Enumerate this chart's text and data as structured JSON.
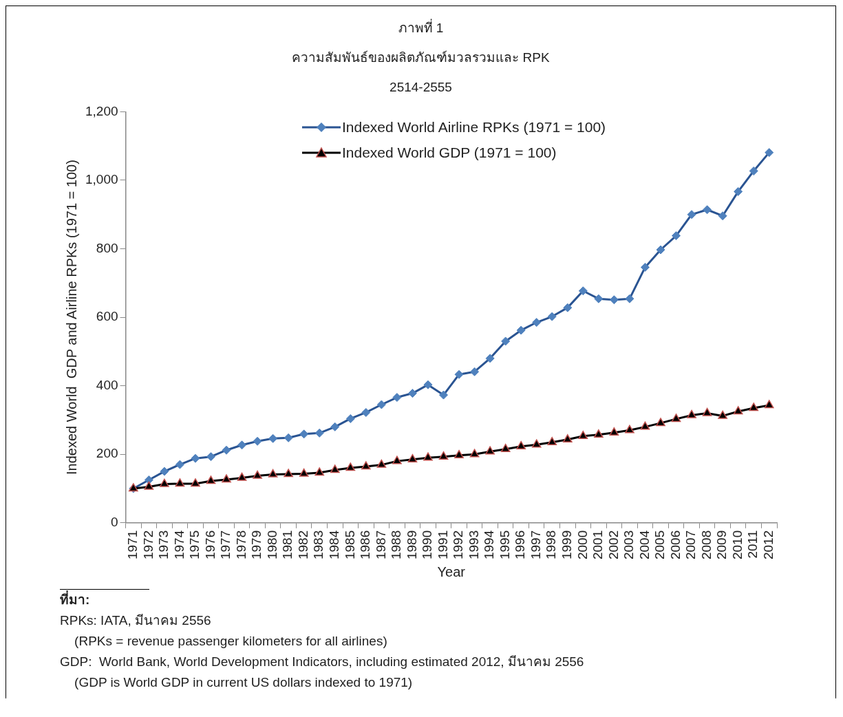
{
  "chart_data": {
    "type": "line",
    "title": "ภาพที่ 1",
    "subtitle": "ความสัมพันธ์ของผลิตภัณฑ์มวลรวมและ RPK\n2514-2555",
    "xlabel": "Year",
    "ylabel": "Indexed World  GDP and Airline RPKs (1971 = 100)",
    "categories": [
      "1971",
      "1972",
      "1973",
      "1974",
      "1975",
      "1976",
      "1977",
      "1978",
      "1979",
      "1980",
      "1981",
      "1982",
      "1983",
      "1984",
      "1985",
      "1986",
      "1987",
      "1988",
      "1989",
      "1990",
      "1991",
      "1992",
      "1993",
      "1994",
      "1995",
      "1996",
      "1997",
      "1998",
      "1999",
      "2000",
      "2001",
      "2002",
      "2003",
      "2004",
      "2005",
      "2006",
      "2007",
      "2008",
      "2009",
      "2010",
      "2011",
      "2012"
    ],
    "series": [
      {
        "name": "Indexed World Airline RPKs (1971 = 100)",
        "color": "#2a5492",
        "marker": "diamond",
        "values": [
          100,
          125,
          150,
          170,
          188,
          193,
          212,
          227,
          238,
          246,
          248,
          259,
          262,
          280,
          304,
          322,
          345,
          366,
          378,
          403,
          373,
          433,
          441,
          480,
          530,
          562,
          585,
          602,
          628,
          677,
          654,
          651,
          654,
          746,
          797,
          838,
          900,
          914,
          896,
          967,
          1027,
          1081
        ]
      },
      {
        "name": "Indexed World GDP (1971 = 100)",
        "color": "#000000",
        "marker": "triangle",
        "values": [
          100,
          105,
          113,
          114,
          114,
          122,
          126,
          131,
          137,
          141,
          142,
          143,
          146,
          154,
          160,
          164,
          169,
          180,
          185,
          190,
          193,
          197,
          200,
          208,
          215,
          223,
          228,
          235,
          243,
          253,
          257,
          263,
          270,
          280,
          291,
          303,
          314,
          320,
          312,
          325,
          335,
          343
        ]
      }
    ],
    "ylim": [
      0,
      1200
    ],
    "yticks": [
      0,
      200,
      400,
      600,
      800,
      {
        "value": 1000,
        "label": "1,000"
      },
      {
        "value": 1200,
        "label": "1,200"
      }
    ],
    "grid": false,
    "legend": "top",
    "line_style": "solid",
    "annotations": [
      "ที่มา:",
      "RPKs: IATA, มีนาคม 2556",
      "    (RPKs = revenue passenger kilometers for all airlines)",
      "GDP:  World Bank, World Development Indicators, including estimated 2012, มีนาคม 2556",
      "    (GDP is World GDP in current US dollars indexed to 1971)"
    ]
  }
}
